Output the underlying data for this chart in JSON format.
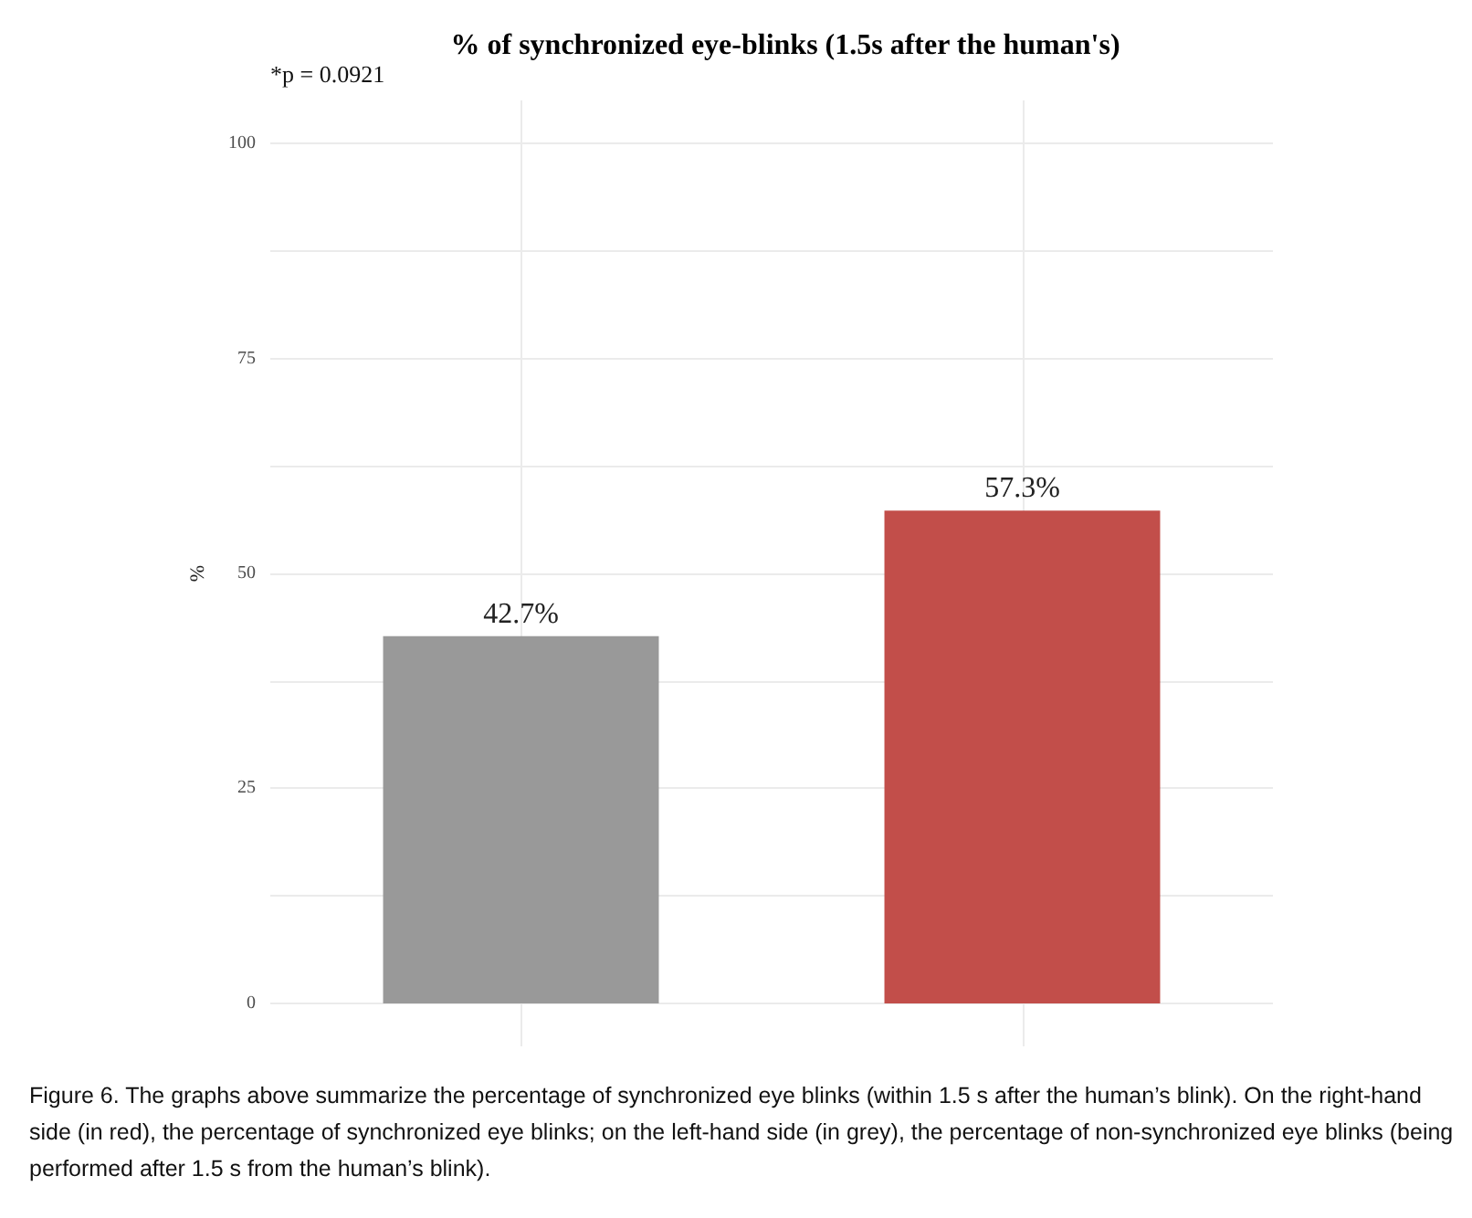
{
  "chart_data": {
    "type": "bar",
    "title": "% of synchronized eye-blinks (1.5s after the human's)",
    "ylabel": "%",
    "categories": [
      null,
      null
    ],
    "values": [
      42.7,
      57.3
    ],
    "colors": [
      "#999999",
      "#c24e4a"
    ],
    "value_labels": [
      "42.7%",
      "57.3%"
    ],
    "ylim": [
      -5,
      105
    ],
    "yticks": [
      0,
      {
        "value": 12.5,
        "label": null
      },
      25,
      {
        "value": 37.5,
        "label": null
      },
      50,
      {
        "value": 62.5,
        "label": null
      },
      75,
      {
        "value": 87.5,
        "label": null
      },
      100
    ],
    "grid": true,
    "tick_labels": "y",
    "annotations": [
      "*p = 0.0921",
      "Figure 6. The graphs above summarize the percentage of synchronized eye blinks (within 1.5 s after the human’s blink). On the right-hand side (in red), the percentage of synchronized eye blinks; on the left-hand side (in grey), the percentage of non-synchronized eye blinks (being performed after 1.5 s from the human’s blink)."
    ]
  }
}
